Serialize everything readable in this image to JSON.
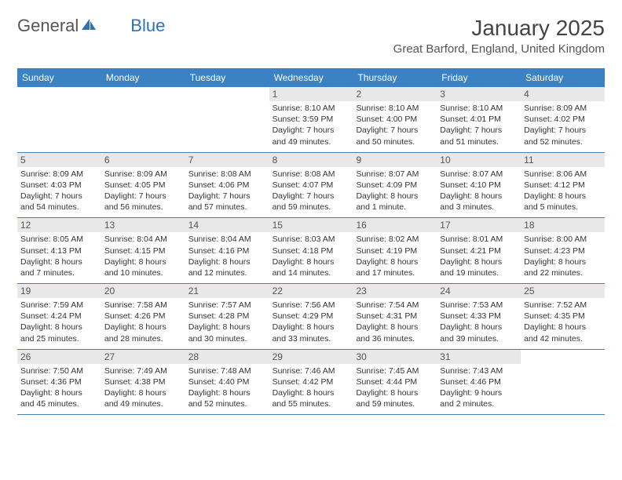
{
  "logo": {
    "text_general": "General",
    "text_blue": "Blue"
  },
  "title": "January 2025",
  "location": "Great Barford, England, United Kingdom",
  "colors": {
    "header_bg": "#3a82c4",
    "header_fg": "#ffffff",
    "daynum_bg": "#e8e8e8",
    "daynum_fg": "#555555",
    "week_border": "#4a7fb0",
    "text": "#333333",
    "logo_gray": "#555555",
    "logo_blue": "#2e72b8"
  },
  "day_headers": [
    "Sunday",
    "Monday",
    "Tuesday",
    "Wednesday",
    "Thursday",
    "Friday",
    "Saturday"
  ],
  "weeks": [
    [
      {
        "n": "",
        "sunrise": "",
        "sunset": "",
        "daylight1": "",
        "daylight2": ""
      },
      {
        "n": "",
        "sunrise": "",
        "sunset": "",
        "daylight1": "",
        "daylight2": ""
      },
      {
        "n": "",
        "sunrise": "",
        "sunset": "",
        "daylight1": "",
        "daylight2": ""
      },
      {
        "n": "1",
        "sunrise": "Sunrise: 8:10 AM",
        "sunset": "Sunset: 3:59 PM",
        "daylight1": "Daylight: 7 hours",
        "daylight2": "and 49 minutes."
      },
      {
        "n": "2",
        "sunrise": "Sunrise: 8:10 AM",
        "sunset": "Sunset: 4:00 PM",
        "daylight1": "Daylight: 7 hours",
        "daylight2": "and 50 minutes."
      },
      {
        "n": "3",
        "sunrise": "Sunrise: 8:10 AM",
        "sunset": "Sunset: 4:01 PM",
        "daylight1": "Daylight: 7 hours",
        "daylight2": "and 51 minutes."
      },
      {
        "n": "4",
        "sunrise": "Sunrise: 8:09 AM",
        "sunset": "Sunset: 4:02 PM",
        "daylight1": "Daylight: 7 hours",
        "daylight2": "and 52 minutes."
      }
    ],
    [
      {
        "n": "5",
        "sunrise": "Sunrise: 8:09 AM",
        "sunset": "Sunset: 4:03 PM",
        "daylight1": "Daylight: 7 hours",
        "daylight2": "and 54 minutes."
      },
      {
        "n": "6",
        "sunrise": "Sunrise: 8:09 AM",
        "sunset": "Sunset: 4:05 PM",
        "daylight1": "Daylight: 7 hours",
        "daylight2": "and 56 minutes."
      },
      {
        "n": "7",
        "sunrise": "Sunrise: 8:08 AM",
        "sunset": "Sunset: 4:06 PM",
        "daylight1": "Daylight: 7 hours",
        "daylight2": "and 57 minutes."
      },
      {
        "n": "8",
        "sunrise": "Sunrise: 8:08 AM",
        "sunset": "Sunset: 4:07 PM",
        "daylight1": "Daylight: 7 hours",
        "daylight2": "and 59 minutes."
      },
      {
        "n": "9",
        "sunrise": "Sunrise: 8:07 AM",
        "sunset": "Sunset: 4:09 PM",
        "daylight1": "Daylight: 8 hours",
        "daylight2": "and 1 minute."
      },
      {
        "n": "10",
        "sunrise": "Sunrise: 8:07 AM",
        "sunset": "Sunset: 4:10 PM",
        "daylight1": "Daylight: 8 hours",
        "daylight2": "and 3 minutes."
      },
      {
        "n": "11",
        "sunrise": "Sunrise: 8:06 AM",
        "sunset": "Sunset: 4:12 PM",
        "daylight1": "Daylight: 8 hours",
        "daylight2": "and 5 minutes."
      }
    ],
    [
      {
        "n": "12",
        "sunrise": "Sunrise: 8:05 AM",
        "sunset": "Sunset: 4:13 PM",
        "daylight1": "Daylight: 8 hours",
        "daylight2": "and 7 minutes."
      },
      {
        "n": "13",
        "sunrise": "Sunrise: 8:04 AM",
        "sunset": "Sunset: 4:15 PM",
        "daylight1": "Daylight: 8 hours",
        "daylight2": "and 10 minutes."
      },
      {
        "n": "14",
        "sunrise": "Sunrise: 8:04 AM",
        "sunset": "Sunset: 4:16 PM",
        "daylight1": "Daylight: 8 hours",
        "daylight2": "and 12 minutes."
      },
      {
        "n": "15",
        "sunrise": "Sunrise: 8:03 AM",
        "sunset": "Sunset: 4:18 PM",
        "daylight1": "Daylight: 8 hours",
        "daylight2": "and 14 minutes."
      },
      {
        "n": "16",
        "sunrise": "Sunrise: 8:02 AM",
        "sunset": "Sunset: 4:19 PM",
        "daylight1": "Daylight: 8 hours",
        "daylight2": "and 17 minutes."
      },
      {
        "n": "17",
        "sunrise": "Sunrise: 8:01 AM",
        "sunset": "Sunset: 4:21 PM",
        "daylight1": "Daylight: 8 hours",
        "daylight2": "and 19 minutes."
      },
      {
        "n": "18",
        "sunrise": "Sunrise: 8:00 AM",
        "sunset": "Sunset: 4:23 PM",
        "daylight1": "Daylight: 8 hours",
        "daylight2": "and 22 minutes."
      }
    ],
    [
      {
        "n": "19",
        "sunrise": "Sunrise: 7:59 AM",
        "sunset": "Sunset: 4:24 PM",
        "daylight1": "Daylight: 8 hours",
        "daylight2": "and 25 minutes."
      },
      {
        "n": "20",
        "sunrise": "Sunrise: 7:58 AM",
        "sunset": "Sunset: 4:26 PM",
        "daylight1": "Daylight: 8 hours",
        "daylight2": "and 28 minutes."
      },
      {
        "n": "21",
        "sunrise": "Sunrise: 7:57 AM",
        "sunset": "Sunset: 4:28 PM",
        "daylight1": "Daylight: 8 hours",
        "daylight2": "and 30 minutes."
      },
      {
        "n": "22",
        "sunrise": "Sunrise: 7:56 AM",
        "sunset": "Sunset: 4:29 PM",
        "daylight1": "Daylight: 8 hours",
        "daylight2": "and 33 minutes."
      },
      {
        "n": "23",
        "sunrise": "Sunrise: 7:54 AM",
        "sunset": "Sunset: 4:31 PM",
        "daylight1": "Daylight: 8 hours",
        "daylight2": "and 36 minutes."
      },
      {
        "n": "24",
        "sunrise": "Sunrise: 7:53 AM",
        "sunset": "Sunset: 4:33 PM",
        "daylight1": "Daylight: 8 hours",
        "daylight2": "and 39 minutes."
      },
      {
        "n": "25",
        "sunrise": "Sunrise: 7:52 AM",
        "sunset": "Sunset: 4:35 PM",
        "daylight1": "Daylight: 8 hours",
        "daylight2": "and 42 minutes."
      }
    ],
    [
      {
        "n": "26",
        "sunrise": "Sunrise: 7:50 AM",
        "sunset": "Sunset: 4:36 PM",
        "daylight1": "Daylight: 8 hours",
        "daylight2": "and 45 minutes."
      },
      {
        "n": "27",
        "sunrise": "Sunrise: 7:49 AM",
        "sunset": "Sunset: 4:38 PM",
        "daylight1": "Daylight: 8 hours",
        "daylight2": "and 49 minutes."
      },
      {
        "n": "28",
        "sunrise": "Sunrise: 7:48 AM",
        "sunset": "Sunset: 4:40 PM",
        "daylight1": "Daylight: 8 hours",
        "daylight2": "and 52 minutes."
      },
      {
        "n": "29",
        "sunrise": "Sunrise: 7:46 AM",
        "sunset": "Sunset: 4:42 PM",
        "daylight1": "Daylight: 8 hours",
        "daylight2": "and 55 minutes."
      },
      {
        "n": "30",
        "sunrise": "Sunrise: 7:45 AM",
        "sunset": "Sunset: 4:44 PM",
        "daylight1": "Daylight: 8 hours",
        "daylight2": "and 59 minutes."
      },
      {
        "n": "31",
        "sunrise": "Sunrise: 7:43 AM",
        "sunset": "Sunset: 4:46 PM",
        "daylight1": "Daylight: 9 hours",
        "daylight2": "and 2 minutes."
      },
      {
        "n": "",
        "sunrise": "",
        "sunset": "",
        "daylight1": "",
        "daylight2": ""
      }
    ]
  ]
}
